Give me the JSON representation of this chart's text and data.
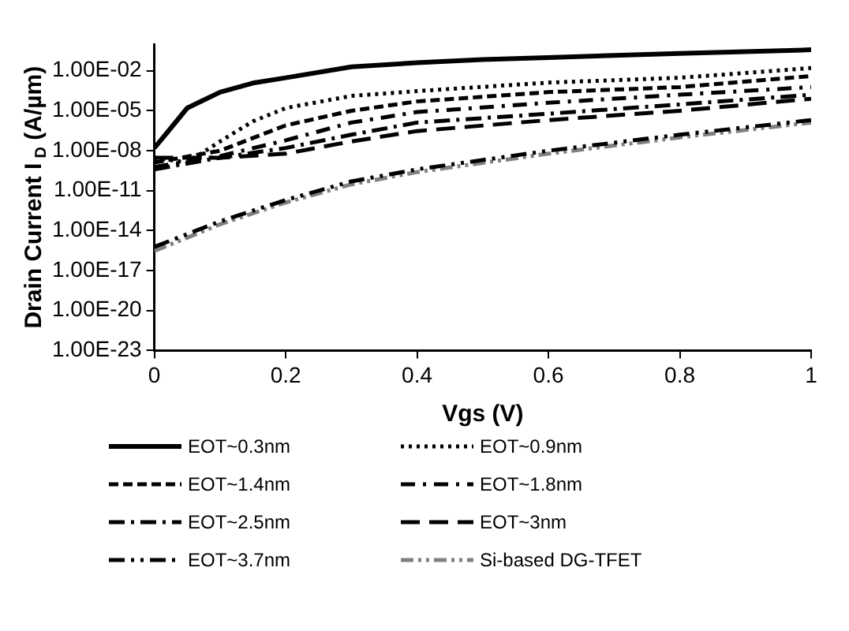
{
  "chart_data": {
    "type": "line",
    "xlabel": "Vgs (V)",
    "ylabel": "Drain Current I$_{D}$ (A/µm)",
    "log": "y",
    "grid": false,
    "legend": "bottom",
    "marker": "none",
    "xlim": [
      0,
      1
    ],
    "xticks": [
      0,
      0.2,
      0.4,
      0.6,
      0.8,
      1
    ],
    "ylim": [
      1e-23,
      1
    ],
    "yticks": [
      {
        "value": 1e-23,
        "label": "1.00E-23"
      },
      {
        "value": 1e-20,
        "label": "1.00E-20"
      },
      {
        "value": 1e-17,
        "label": "1.00E-17"
      },
      {
        "value": 1e-14,
        "label": "1.00E-14"
      },
      {
        "value": 1e-11,
        "label": "1.00E-11"
      },
      {
        "value": 1e-08,
        "label": "1.00E-08"
      },
      {
        "value": 1e-05,
        "label": "1.00E-05"
      },
      {
        "value": 0.01,
        "label": "1.00E-02"
      }
    ],
    "series": [
      {
        "name": "EOT~0.3nm",
        "color": "#000000",
        "line_style": "solid",
        "x": [
          0,
          0.02,
          0.05,
          0.1,
          0.15,
          0.2,
          0.3,
          0.4,
          0.5,
          0.6,
          0.8,
          1
        ],
        "values": [
          1.6e-08,
          2.5e-07,
          1.6e-05,
          0.00025,
          0.0012,
          0.003,
          0.02,
          0.04,
          0.07,
          0.1,
          0.2,
          0.38
        ]
      },
      {
        "name": "EOT~0.9nm",
        "color": "#000000",
        "line_style": "dotted",
        "x": [
          0,
          0.05,
          0.1,
          0.15,
          0.2,
          0.3,
          0.4,
          0.6,
          0.8,
          1
        ],
        "values": [
          3e-09,
          1.3e-09,
          5e-08,
          1.6e-06,
          1.6e-05,
          0.00013,
          0.0003,
          0.0013,
          0.003,
          0.016
        ]
      },
      {
        "name": "EOT~1.4nm",
        "color": "#000000",
        "line_style": "dashed",
        "x": [
          0,
          0.1,
          0.2,
          0.3,
          0.4,
          0.6,
          0.8,
          1
        ],
        "values": [
          1.3e-09,
          1e-08,
          8e-07,
          1e-05,
          5e-05,
          0.00025,
          0.0006,
          0.004
        ]
      },
      {
        "name": "EOT~1.8nm",
        "color": "#000000",
        "line_style": "dashed",
        "x": [
          0,
          0.1,
          0.2,
          0.3,
          0.4,
          0.6,
          0.8,
          1
        ],
        "values": [
          6e-10,
          4e-09,
          6e-08,
          1.3e-06,
          8e-06,
          4e-05,
          0.00016,
          0.0006
        ]
      },
      {
        "name": "EOT~2.5nm",
        "color": "#000000",
        "line_style": "dashed",
        "x": [
          0,
          0.1,
          0.2,
          0.3,
          0.4,
          0.6,
          0.8,
          1
        ],
        "values": [
          4e-10,
          3e-09,
          1.6e-08,
          1.6e-07,
          1.3e-06,
          6e-06,
          3e-05,
          0.00016
        ]
      },
      {
        "name": "EOT~3nm",
        "color": "#000000",
        "line_style": "dashed",
        "x": [
          0,
          0.1,
          0.2,
          0.3,
          0.4,
          0.6,
          0.8,
          1
        ],
        "values": [
          3e-09,
          3e-09,
          6e-09,
          5e-08,
          3e-07,
          2e-06,
          1e-05,
          8e-05
        ]
      },
      {
        "name": "EOT~3.7nm",
        "color": "#000000",
        "line_style": "dashed",
        "x": [
          0,
          0.1,
          0.2,
          0.3,
          0.4,
          0.6,
          0.8,
          1
        ],
        "values": [
          6e-16,
          5e-14,
          2e-12,
          5e-11,
          4e-10,
          1e-08,
          1.6e-07,
          2e-06
        ]
      },
      {
        "name": "Si-based DG-TFET",
        "color": "#808080",
        "line_style": "dashed",
        "x": [
          0,
          0.1,
          0.2,
          0.3,
          0.4,
          0.6,
          0.8,
          1
        ],
        "values": [
          3e-16,
          3e-14,
          1.3e-12,
          3e-11,
          2.5e-10,
          6e-09,
          1e-07,
          1.3e-06
        ]
      }
    ]
  }
}
